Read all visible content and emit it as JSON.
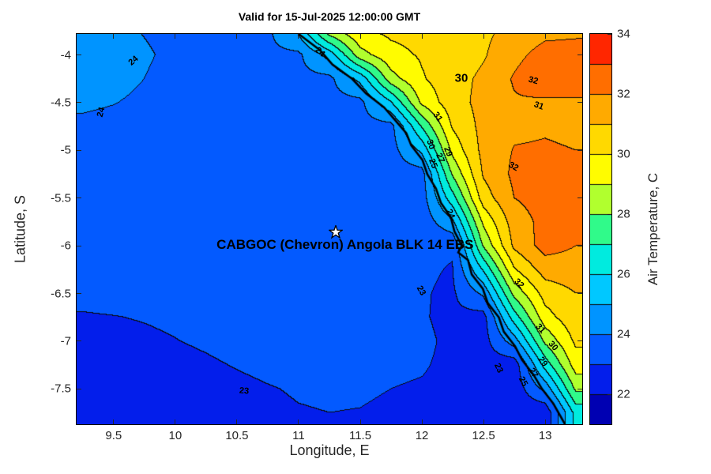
{
  "title": "Valid for 15-Jul-2025 12:00:00 GMT",
  "axes": {
    "xlabel": "Longitude, E",
    "ylabel": "Latitude, S",
    "xlim": [
      9.2,
      13.3
    ],
    "ylim": [
      -7.87,
      -3.78
    ],
    "xticks": [
      9.5,
      10,
      10.5,
      11,
      11.5,
      12,
      12.5,
      13
    ],
    "yticks": [
      -4,
      -4.5,
      -5,
      -5.5,
      -6,
      -6.5,
      -7,
      -7.5
    ]
  },
  "colorbar": {
    "label": "Air Temperature, C",
    "range": [
      21,
      34
    ],
    "ticks": [
      22,
      24,
      26,
      28,
      30,
      32,
      34
    ]
  },
  "station": {
    "label": "CABGOC (Chevron) Angola BLK 14  EBS",
    "lon": 11.3,
    "lat": -5.86
  },
  "chart_data": {
    "type": "heatmap",
    "style": "filled-contour",
    "units": "deg C",
    "contour_interval": 1,
    "title": "Valid for 15-Jul-2025 12:00:00 GMT",
    "xlabel": "Longitude, E",
    "ylabel": "Latitude, S",
    "lons": [
      9.25,
      9.5,
      9.75,
      10,
      10.25,
      10.5,
      10.75,
      11,
      11.25,
      11.5,
      11.75,
      12,
      12.25,
      12.5,
      12.75,
      13,
      13.25
    ],
    "lats": [
      -3.75,
      -4,
      -4.25,
      -4.5,
      -4.75,
      -5,
      -5.25,
      -5.5,
      -5.75,
      -6,
      -6.25,
      -6.5,
      -6.75,
      -7,
      -7.25,
      -7.5,
      -7.75
    ],
    "temps": [
      [
        24.17,
        24.1,
        23.98,
        23.88,
        23.82,
        23.81,
        23.8,
        25.2,
        28.6,
        29.9,
        30.2,
        30.3,
        30.5,
        30.8,
        31.3,
        31.7,
        31.8
      ],
      [
        24.32,
        24.22,
        24.05,
        23.91,
        23.83,
        23.8,
        23.8,
        23.8,
        25.4,
        28.6,
        29.7,
        30.1,
        30.4,
        30.9,
        31.7,
        32.4,
        32.4
      ],
      [
        24.28,
        24.18,
        24.0,
        23.86,
        23.79,
        23.75,
        23.75,
        23.75,
        23.75,
        25.3,
        28.6,
        29.9,
        30.6,
        31.2,
        32.1,
        32.9,
        32.9
      ],
      [
        24.1,
        24.02,
        23.89,
        23.78,
        23.73,
        23.7,
        23.7,
        23.7,
        23.7,
        23.7,
        25.9,
        29.2,
        30.6,
        31.3,
        31.9,
        31.8,
        31.8
      ],
      [
        23.88,
        23.83,
        23.76,
        23.7,
        23.65,
        23.65,
        23.65,
        23.65,
        23.65,
        23.65,
        23.65,
        27.05,
        30.1,
        31.3,
        31.8,
        31.9,
        31.8
      ],
      [
        23.69,
        23.67,
        23.62,
        23.6,
        23.6,
        23.6,
        23.6,
        23.6,
        23.6,
        23.6,
        23.6,
        25.2,
        29.3,
        31.3,
        32.05,
        32.1,
        32.0
      ],
      [
        23.58,
        23.57,
        23.55,
        23.55,
        23.55,
        23.55,
        23.55,
        23.55,
        23.55,
        23.55,
        23.55,
        23.55,
        28.1,
        31.1,
        32.2,
        32.4,
        32.1
      ],
      [
        23.5,
        23.5,
        23.5,
        23.5,
        23.5,
        23.5,
        23.5,
        23.5,
        23.5,
        23.5,
        23.5,
        23.5,
        26.6,
        30.5,
        32.0,
        32.4,
        32.1
      ],
      [
        23.45,
        23.45,
        23.45,
        23.45,
        23.45,
        23.45,
        23.45,
        23.45,
        23.45,
        23.45,
        23.4,
        23.38,
        24.8,
        29.2,
        31.5,
        32.3,
        32.05
      ],
      [
        23.35,
        23.35,
        23.35,
        23.35,
        23.35,
        23.35,
        23.35,
        23.35,
        23.35,
        23.35,
        23.28,
        23.19,
        23.09,
        28.1,
        31.2,
        32.4,
        32.0
      ],
      [
        23.26,
        23.27,
        23.27,
        23.28,
        23.3,
        23.32,
        23.33,
        23.34,
        23.35,
        23.35,
        23.28,
        23.12,
        22.95,
        26.1,
        29.9,
        31.45,
        31.55
      ],
      [
        23.1,
        23.13,
        23.15,
        23.17,
        23.2,
        23.24,
        23.27,
        23.29,
        23.3,
        23.3,
        23.28,
        23.07,
        22.85,
        24.2,
        28.3,
        30.4,
        31.0
      ],
      [
        22.97,
        22.99,
        23.02,
        23.06,
        23.1,
        23.15,
        23.2,
        23.23,
        23.25,
        23.24,
        23.2,
        23.06,
        22.83,
        22.6,
        26.5,
        29.6,
        30.7
      ],
      [
        22.88,
        22.9,
        22.94,
        22.99,
        23.05,
        23.12,
        23.18,
        23.23,
        23.25,
        23.24,
        23.2,
        23.13,
        22.87,
        22.61,
        24.5,
        28.2,
        30.2
      ],
      [
        22.78,
        22.8,
        22.84,
        22.89,
        22.95,
        23.02,
        23.08,
        23.13,
        23.15,
        23.14,
        23.1,
        23.05,
        22.87,
        22.61,
        22.36,
        26.4,
        29.5
      ],
      [
        22.68,
        22.7,
        22.74,
        22.79,
        22.85,
        22.92,
        22.98,
        23.03,
        23.05,
        23.04,
        23.0,
        22.95,
        22.87,
        22.6,
        22.36,
        24.3,
        28.2
      ],
      [
        22.63,
        22.65,
        22.69,
        22.74,
        22.8,
        22.87,
        22.93,
        22.98,
        23.0,
        22.99,
        22.95,
        22.9,
        22.83,
        22.64,
        22.4,
        22.14,
        26.4
      ]
    ],
    "colormap_stops": [
      [
        21,
        0,
        0,
        140
      ],
      [
        22,
        0,
        0,
        215
      ],
      [
        23,
        5,
        60,
        255
      ],
      [
        24,
        0,
        120,
        255
      ],
      [
        25,
        0,
        175,
        255
      ],
      [
        26,
        0,
        225,
        255
      ],
      [
        27,
        0,
        245,
        190
      ],
      [
        28,
        95,
        255,
        85
      ],
      [
        28.7,
        210,
        255,
        30
      ],
      [
        29.4,
        255,
        255,
        0
      ],
      [
        30.2,
        255,
        230,
        0
      ],
      [
        31,
        255,
        195,
        0
      ],
      [
        32,
        255,
        145,
        0
      ],
      [
        33,
        255,
        75,
        0
      ],
      [
        34,
        255,
        0,
        0
      ]
    ],
    "coastline": [
      [
        -3.78,
        11.0
      ],
      [
        -3.95,
        11.16
      ],
      [
        -4.1,
        11.28
      ],
      [
        -4.25,
        11.42
      ],
      [
        -4.4,
        11.55
      ],
      [
        -4.55,
        11.68
      ],
      [
        -4.7,
        11.8
      ],
      [
        -4.82,
        11.86
      ],
      [
        -4.95,
        11.92
      ],
      [
        -5.1,
        11.99
      ],
      [
        -5.25,
        12.05
      ],
      [
        -5.4,
        12.1
      ],
      [
        -5.55,
        12.16
      ],
      [
        -5.7,
        12.22
      ],
      [
        -5.85,
        12.27
      ],
      [
        -6.0,
        12.31
      ],
      [
        -6.07,
        12.3
      ],
      [
        -6.15,
        12.36
      ],
      [
        -6.3,
        12.41
      ],
      [
        -6.45,
        12.48
      ],
      [
        -6.6,
        12.54
      ],
      [
        -6.75,
        12.61
      ],
      [
        -6.9,
        12.67
      ],
      [
        -7.05,
        12.74
      ],
      [
        -7.2,
        12.82
      ],
      [
        -7.35,
        12.89
      ],
      [
        -7.5,
        12.98
      ],
      [
        -7.65,
        13.05
      ],
      [
        -7.87,
        13.16
      ]
    ],
    "contour_labels": [
      {
        "t": "24",
        "lon": 9.66,
        "lat": -4.06,
        "rot": -40
      },
      {
        "t": "24",
        "lon": 9.4,
        "lat": -4.6,
        "rot": -75
      },
      {
        "t": "24",
        "lon": 11.17,
        "lat": -3.97,
        "rot": 42
      },
      {
        "t": "30",
        "lon": 12.32,
        "lat": -4.24,
        "rot": 0,
        "big": true
      },
      {
        "t": "32",
        "lon": 12.9,
        "lat": -4.27,
        "rot": 15
      },
      {
        "t": "31",
        "lon": 12.95,
        "lat": -4.53,
        "rot": 20
      },
      {
        "t": "31",
        "lon": 12.13,
        "lat": -4.65,
        "rot": 55
      },
      {
        "t": "30",
        "lon": 12.07,
        "lat": -4.94,
        "rot": 70
      },
      {
        "t": "29",
        "lon": 12.21,
        "lat": -5.01,
        "rot": 68
      },
      {
        "t": "27",
        "lon": 12.15,
        "lat": -5.08,
        "rot": 68
      },
      {
        "t": "25",
        "lon": 12.09,
        "lat": -5.14,
        "rot": 68
      },
      {
        "t": "32",
        "lon": 12.74,
        "lat": -5.17,
        "rot": 30
      },
      {
        "t": "24",
        "lon": 12.23,
        "lat": -5.67,
        "rot": 65
      },
      {
        "t": "23",
        "lon": 11.99,
        "lat": -6.47,
        "rot": 60
      },
      {
        "t": "32",
        "lon": 12.79,
        "lat": -6.4,
        "rot": 45
      },
      {
        "t": "31",
        "lon": 12.96,
        "lat": -6.87,
        "rot": 48
      },
      {
        "t": "30",
        "lon": 13.06,
        "lat": -7.05,
        "rot": 50
      },
      {
        "t": "29",
        "lon": 12.98,
        "lat": -7.22,
        "rot": 55
      },
      {
        "t": "27",
        "lon": 12.9,
        "lat": -7.33,
        "rot": 60
      },
      {
        "t": "25",
        "lon": 12.82,
        "lat": -7.42,
        "rot": 62
      },
      {
        "t": "23",
        "lon": 12.62,
        "lat": -7.28,
        "rot": 65
      },
      {
        "t": "23",
        "lon": 10.56,
        "lat": -7.52,
        "rot": 5
      }
    ]
  }
}
